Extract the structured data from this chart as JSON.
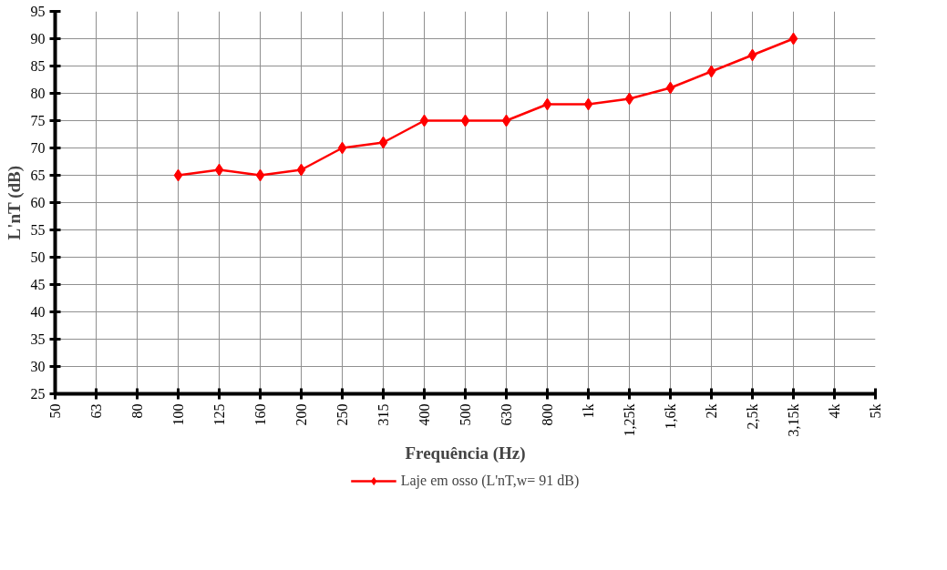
{
  "chart_data": {
    "type": "line",
    "xlabel": "Frequência (Hz)",
    "ylabel": "L'nT (dB)",
    "categories": [
      "50",
      "63",
      "80",
      "100",
      "125",
      "160",
      "200",
      "250",
      "315",
      "400",
      "500",
      "630",
      "800",
      "1k",
      "1,25k",
      "1,6k",
      "2k",
      "2,5k",
      "3,15k",
      "4k",
      "5k"
    ],
    "series": [
      {
        "name": "Laje em osso (L'nT,w= 91 dB)",
        "color": "#ff0000",
        "values": [
          null,
          null,
          null,
          65,
          66,
          65,
          66,
          70,
          71,
          75,
          75,
          75,
          78,
          78,
          79,
          81,
          84,
          87,
          90,
          null,
          null
        ]
      }
    ],
    "ylim": [
      25,
      95
    ],
    "yticks": [
      25,
      30,
      35,
      40,
      45,
      50,
      55,
      60,
      65,
      70,
      75,
      80,
      85,
      90,
      95
    ],
    "grid": true,
    "legend": "bottom",
    "marker": "diamond",
    "line_style": "solid"
  }
}
